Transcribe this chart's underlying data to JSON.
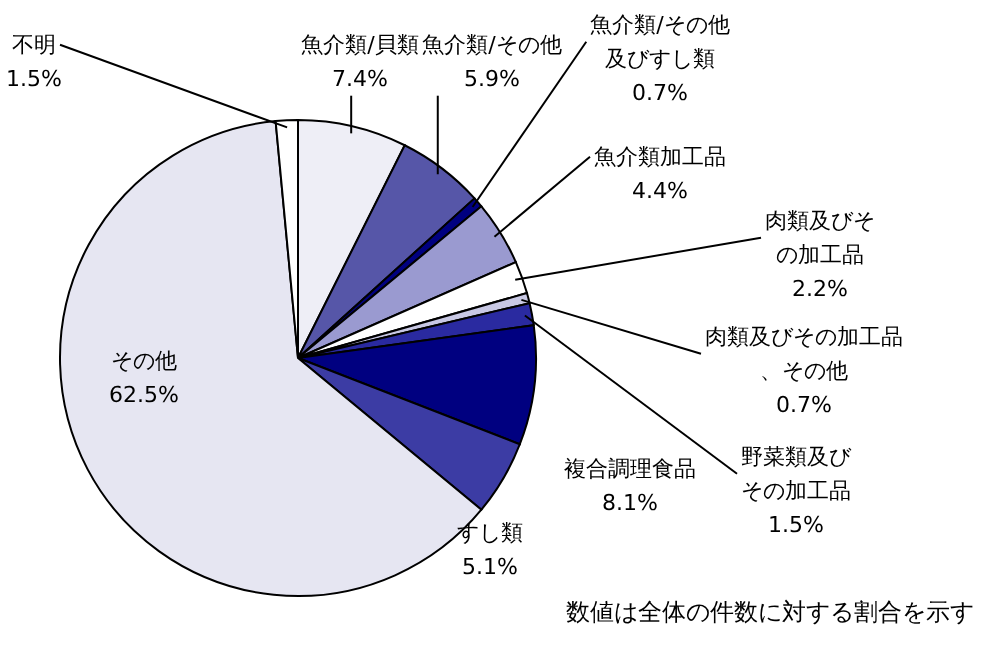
{
  "chart_data": {
    "type": "pie",
    "categories": [
      "魚介類/貝類",
      "魚介類/その他",
      "魚介類/その他及びすし類",
      "魚介類加工品",
      "肉類及びその加工品",
      "肉類及びその加工品、その他",
      "野菜類及びその加工品",
      "複合調理食品",
      "すし類",
      "その他",
      "不明"
    ],
    "values": [
      7.4,
      5.9,
      0.7,
      4.4,
      2.2,
      0.7,
      1.5,
      8.1,
      5.1,
      62.5,
      1.5
    ],
    "value_labels": [
      "7.4%",
      "5.9%",
      "0.7%",
      "4.4%",
      "2.2%",
      "0.7%",
      "1.5%",
      "8.1%",
      "5.1%",
      "62.5%",
      "1.5%"
    ],
    "colors": [
      "#eeeef6",
      "#5656a8",
      "#000080",
      "#9a9ad0",
      "#ffffff",
      "#c8c8e4",
      "#2a2aa0",
      "#000080",
      "#3c3ca4",
      "#e6e6f2",
      "#ffffff"
    ],
    "annotations": [
      "数値は全体の件数に対する割合を示す"
    ]
  }
}
